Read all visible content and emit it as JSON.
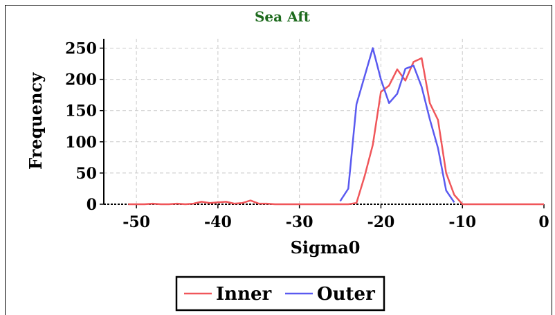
{
  "chart_data": {
    "type": "line",
    "title": "Sea Aft",
    "xlabel": "Sigma0",
    "ylabel": "Frequency",
    "xlim": [
      -54,
      0
    ],
    "ylim": [
      0,
      265
    ],
    "xticks": [
      -50,
      -40,
      -30,
      -20,
      -10,
      0
    ],
    "yticks": [
      0,
      50,
      100,
      150,
      200,
      250
    ],
    "grid": true,
    "legend_position": "bottom-center",
    "colors": {
      "Inner": "#f0565a",
      "Outer": "#5a5af0",
      "title": "#1e6b1e"
    },
    "series": [
      {
        "name": "Inner",
        "x": [
          -51,
          -50,
          -49,
          -48,
          -47,
          -46,
          -45,
          -44,
          -43,
          -42,
          -41,
          -40,
          -39,
          -38,
          -37,
          -36,
          -35,
          -34,
          -33,
          -32,
          -31,
          -30,
          -29,
          -28,
          -27,
          -26,
          -25,
          -24,
          -23,
          -22,
          -21,
          -20,
          -19,
          -18,
          -17,
          -16,
          -15,
          -14,
          -13,
          -12,
          -11,
          -10,
          -9,
          -8,
          -7,
          -6,
          -5,
          -4,
          -3,
          -2,
          -1,
          0
        ],
        "y": [
          0,
          0,
          0,
          1,
          0,
          0,
          1,
          0,
          1,
          4,
          2,
          3,
          4,
          1,
          2,
          6,
          1,
          1,
          0,
          0,
          0,
          0,
          0,
          0,
          0,
          0,
          0,
          0,
          2,
          45,
          95,
          180,
          190,
          216,
          198,
          228,
          234,
          162,
          135,
          50,
          15,
          0,
          0,
          0,
          0,
          0,
          0,
          0,
          0,
          0,
          0,
          0
        ]
      },
      {
        "name": "Outer",
        "x": [
          -25,
          -24,
          -23,
          -22,
          -21,
          -20,
          -19,
          -18,
          -17,
          -16,
          -15,
          -14,
          -13,
          -12,
          -11
        ],
        "y": [
          5,
          25,
          160,
          205,
          250,
          200,
          162,
          177,
          217,
          222,
          188,
          136,
          90,
          22,
          3
        ]
      }
    ]
  }
}
